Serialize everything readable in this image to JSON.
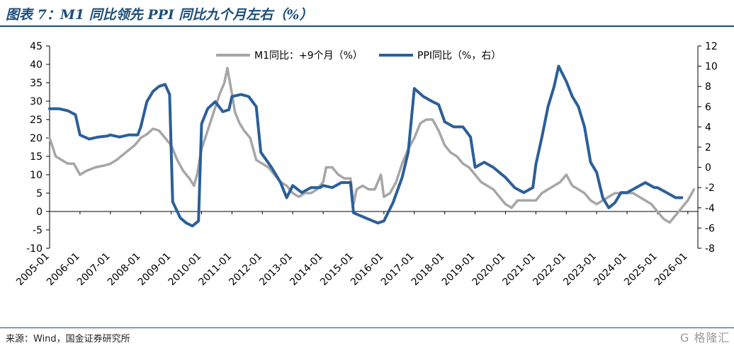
{
  "title": "图表 7：M1 同比领先 PPI 同比九个月左右（%）",
  "source": "来源：Wind，国金证券研究所",
  "watermark": "G 格隆汇",
  "colors": {
    "m1": "#a6a6a6",
    "ppi": "#2b5f98",
    "title": "#1c4d7a"
  },
  "chart_data": {
    "type": "line",
    "xlabel": "",
    "ylabel": "",
    "ylim": [
      -10,
      45
    ],
    "y2lim": [
      -8,
      12
    ],
    "grid": false,
    "legend_position": "top-center",
    "x_ticks": [
      "2005-01",
      "2006-01",
      "2007-01",
      "2008-01",
      "2009-01",
      "2010-01",
      "2011-01",
      "2012-01",
      "2013-01",
      "2014-01",
      "2015-01",
      "2016-01",
      "2017-01",
      "2018-01",
      "2019-01",
      "2020-01",
      "2021-01",
      "2022-01",
      "2023-01",
      "2024-01",
      "2025-01",
      "2026-01"
    ],
    "y_ticks": [
      -10,
      -5,
      0,
      5,
      10,
      15,
      20,
      25,
      30,
      35,
      40,
      45
    ],
    "y2_ticks": [
      -8,
      -6,
      -4,
      -2,
      0,
      2,
      4,
      6,
      8,
      10,
      12
    ],
    "series": [
      {
        "name": "M1同比：+9个月（%）",
        "axis": "left",
        "points": [
          [
            2005.0,
            20
          ],
          [
            2005.2,
            15
          ],
          [
            2005.4,
            14
          ],
          [
            2005.6,
            13
          ],
          [
            2005.8,
            13
          ],
          [
            2006.0,
            10
          ],
          [
            2006.2,
            11
          ],
          [
            2006.5,
            12
          ],
          [
            2006.8,
            12.5
          ],
          [
            2007.0,
            13
          ],
          [
            2007.2,
            14
          ],
          [
            2007.5,
            16
          ],
          [
            2007.8,
            18
          ],
          [
            2008.0,
            20
          ],
          [
            2008.2,
            21
          ],
          [
            2008.4,
            22.5
          ],
          [
            2008.6,
            22
          ],
          [
            2008.8,
            20
          ],
          [
            2009.0,
            18
          ],
          [
            2009.1,
            16
          ],
          [
            2009.2,
            14
          ],
          [
            2009.4,
            11
          ],
          [
            2009.6,
            9
          ],
          [
            2009.75,
            7
          ],
          [
            2009.85,
            10
          ],
          [
            2010.0,
            17
          ],
          [
            2010.2,
            22
          ],
          [
            2010.4,
            27
          ],
          [
            2010.6,
            32
          ],
          [
            2010.75,
            35
          ],
          [
            2010.85,
            39
          ],
          [
            2011.0,
            32
          ],
          [
            2011.1,
            27
          ],
          [
            2011.25,
            24
          ],
          [
            2011.4,
            22
          ],
          [
            2011.6,
            20
          ],
          [
            2011.8,
            14
          ],
          [
            2012.0,
            13
          ],
          [
            2012.2,
            12
          ],
          [
            2012.4,
            10
          ],
          [
            2012.6,
            8
          ],
          [
            2012.8,
            7
          ],
          [
            2013.0,
            5
          ],
          [
            2013.2,
            4
          ],
          [
            2013.4,
            5
          ],
          [
            2013.6,
            5
          ],
          [
            2013.8,
            6
          ],
          [
            2014.0,
            8
          ],
          [
            2014.1,
            12
          ],
          [
            2014.3,
            12
          ],
          [
            2014.5,
            10
          ],
          [
            2014.7,
            9
          ],
          [
            2014.9,
            9
          ],
          [
            2015.0,
            2
          ],
          [
            2015.1,
            6
          ],
          [
            2015.3,
            7
          ],
          [
            2015.5,
            6
          ],
          [
            2015.7,
            6
          ],
          [
            2015.9,
            10
          ],
          [
            2016.0,
            4
          ],
          [
            2016.2,
            5
          ],
          [
            2016.4,
            8
          ],
          [
            2016.6,
            13
          ],
          [
            2016.8,
            17
          ],
          [
            2017.0,
            20
          ],
          [
            2017.2,
            24
          ],
          [
            2017.4,
            25
          ],
          [
            2017.6,
            25
          ],
          [
            2017.8,
            22
          ],
          [
            2018.0,
            18
          ],
          [
            2018.2,
            16
          ],
          [
            2018.4,
            15
          ],
          [
            2018.6,
            13
          ],
          [
            2018.8,
            12
          ],
          [
            2019.0,
            10
          ],
          [
            2019.2,
            8
          ],
          [
            2019.4,
            7
          ],
          [
            2019.6,
            6
          ],
          [
            2019.8,
            4
          ],
          [
            2020.0,
            2
          ],
          [
            2020.2,
            1
          ],
          [
            2020.4,
            3
          ],
          [
            2020.6,
            3
          ],
          [
            2020.8,
            3
          ],
          [
            2021.0,
            3
          ],
          [
            2021.2,
            5
          ],
          [
            2021.4,
            6
          ],
          [
            2021.6,
            7
          ],
          [
            2021.8,
            8
          ],
          [
            2022.0,
            10
          ],
          [
            2022.2,
            7
          ],
          [
            2022.4,
            6
          ],
          [
            2022.6,
            5
          ],
          [
            2022.8,
            3
          ],
          [
            2023.0,
            2
          ],
          [
            2023.2,
            3
          ],
          [
            2023.4,
            4
          ],
          [
            2023.6,
            5
          ],
          [
            2023.8,
            5
          ],
          [
            2024.0,
            5
          ],
          [
            2024.2,
            5
          ],
          [
            2024.4,
            4
          ],
          [
            2024.6,
            3
          ],
          [
            2024.8,
            2
          ],
          [
            2025.0,
            0
          ],
          [
            2025.2,
            -2
          ],
          [
            2025.4,
            -3
          ],
          [
            2025.6,
            -1
          ],
          [
            2025.8,
            1
          ],
          [
            2026.0,
            3
          ],
          [
            2026.2,
            6
          ]
        ]
      },
      {
        "name": "PPI同比（%，右）",
        "axis": "right",
        "points": [
          [
            2005.0,
            5.8
          ],
          [
            2005.3,
            5.8
          ],
          [
            2005.6,
            5.6
          ],
          [
            2005.85,
            5.2
          ],
          [
            2006.0,
            3.2
          ],
          [
            2006.3,
            2.8
          ],
          [
            2006.6,
            3.0
          ],
          [
            2006.9,
            3.1
          ],
          [
            2007.0,
            3.2
          ],
          [
            2007.3,
            3.0
          ],
          [
            2007.6,
            3.2
          ],
          [
            2007.9,
            3.2
          ],
          [
            2008.0,
            4.0
          ],
          [
            2008.2,
            6.5
          ],
          [
            2008.4,
            7.5
          ],
          [
            2008.6,
            8.0
          ],
          [
            2008.8,
            8.2
          ],
          [
            2008.95,
            7.2
          ],
          [
            2009.05,
            -3.4
          ],
          [
            2009.3,
            -5.0
          ],
          [
            2009.5,
            -5.5
          ],
          [
            2009.7,
            -5.8
          ],
          [
            2009.9,
            -5.3
          ],
          [
            2010.0,
            4.3
          ],
          [
            2010.2,
            5.8
          ],
          [
            2010.45,
            6.5
          ],
          [
            2010.7,
            5.5
          ],
          [
            2010.9,
            5.7
          ],
          [
            2011.0,
            7.0
          ],
          [
            2011.3,
            7.2
          ],
          [
            2011.55,
            7.0
          ],
          [
            2011.8,
            6.0
          ],
          [
            2011.95,
            1.5
          ],
          [
            2012.3,
            0.0
          ],
          [
            2012.6,
            -1.5
          ],
          [
            2012.8,
            -3.0
          ],
          [
            2013.0,
            -1.8
          ],
          [
            2013.3,
            -2.5
          ],
          [
            2013.6,
            -2.0
          ],
          [
            2013.9,
            -2.0
          ],
          [
            2014.0,
            -1.8
          ],
          [
            2014.3,
            -2.0
          ],
          [
            2014.6,
            -1.5
          ],
          [
            2014.9,
            -1.5
          ],
          [
            2015.0,
            -4.5
          ],
          [
            2015.4,
            -5.0
          ],
          [
            2015.8,
            -5.5
          ],
          [
            2016.0,
            -5.3
          ],
          [
            2016.3,
            -3.5
          ],
          [
            2016.6,
            -1.0
          ],
          [
            2016.8,
            1.5
          ],
          [
            2017.0,
            7.8
          ],
          [
            2017.3,
            7.0
          ],
          [
            2017.6,
            6.5
          ],
          [
            2017.8,
            6.2
          ],
          [
            2018.0,
            4.5
          ],
          [
            2018.3,
            4.0
          ],
          [
            2018.6,
            4.0
          ],
          [
            2018.85,
            3.0
          ],
          [
            2019.0,
            0.0
          ],
          [
            2019.3,
            0.5
          ],
          [
            2019.6,
            0.0
          ],
          [
            2019.8,
            -0.5
          ],
          [
            2020.0,
            -1.0
          ],
          [
            2020.3,
            -2.0
          ],
          [
            2020.6,
            -2.5
          ],
          [
            2020.9,
            -2.0
          ],
          [
            2021.0,
            0.3
          ],
          [
            2021.2,
            3.0
          ],
          [
            2021.4,
            6.0
          ],
          [
            2021.6,
            8.0
          ],
          [
            2021.75,
            10.0
          ],
          [
            2022.0,
            8.5
          ],
          [
            2022.2,
            7.0
          ],
          [
            2022.4,
            6.0
          ],
          [
            2022.6,
            4.0
          ],
          [
            2022.8,
            0.5
          ],
          [
            2023.0,
            -0.5
          ],
          [
            2023.2,
            -3.0
          ],
          [
            2023.4,
            -4.0
          ],
          [
            2023.6,
            -3.5
          ],
          [
            2023.8,
            -2.5
          ],
          [
            2024.0,
            -2.5
          ],
          [
            2024.3,
            -2.0
          ],
          [
            2024.6,
            -1.5
          ],
          [
            2024.9,
            -2.0
          ],
          [
            2025.0,
            -2.0
          ],
          [
            2025.3,
            -2.5
          ],
          [
            2025.6,
            -3.0
          ],
          [
            2025.8,
            -3.0
          ]
        ]
      }
    ]
  }
}
